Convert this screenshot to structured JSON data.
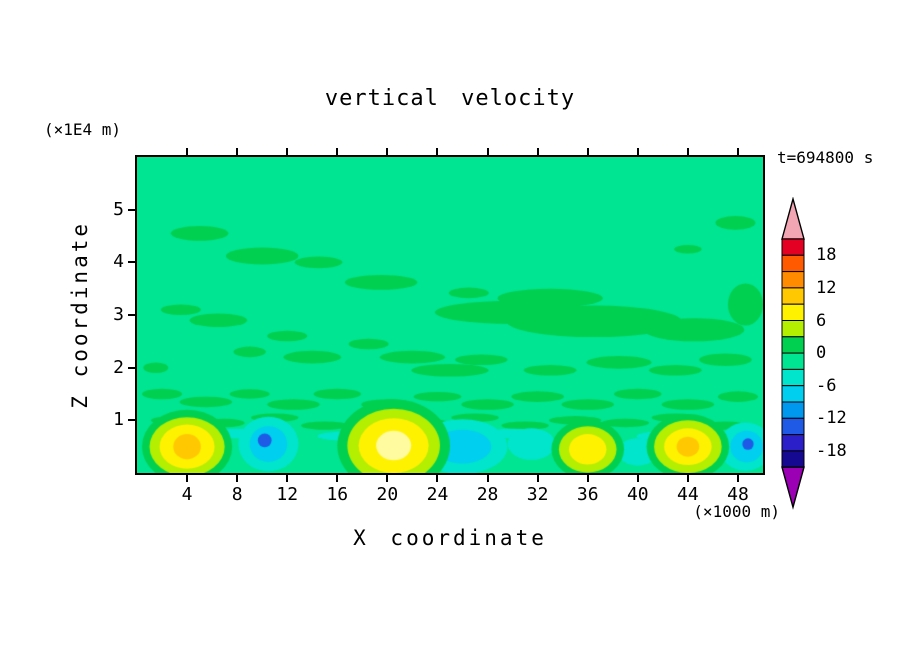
{
  "title": "vertical velocity",
  "timestamp": "t=694800 s",
  "x_axis": {
    "label": "X coordinate",
    "unit": "(×1000 m)",
    "ticks": [
      4,
      8,
      12,
      16,
      20,
      24,
      28,
      32,
      36,
      40,
      44,
      48
    ],
    "range": [
      0,
      50
    ]
  },
  "y_axis": {
    "label": "Z coordinate",
    "unit": "(×1E4 m)",
    "ticks": [
      1,
      2,
      3,
      4,
      5
    ],
    "range": [
      0,
      6
    ]
  },
  "colorbar": {
    "position": "right",
    "band_edges": [
      21,
      18,
      15,
      12,
      9,
      6,
      3,
      0,
      -3,
      -6,
      -9,
      -12,
      -15,
      -18,
      -21
    ],
    "colors": [
      "#E30022",
      "#FF5A00",
      "#FF8C00",
      "#FFC800",
      "#FFF200",
      "#B4EE00",
      "#00D050",
      "#00E591",
      "#00E5CC",
      "#00CFEF",
      "#0098EE",
      "#1E5AE6",
      "#2A1FC8",
      "#160991"
    ],
    "top_arrow_color": "#F2A6B4",
    "bottom_arrow_color": "#9B00B4",
    "labels": [
      {
        "text": "18",
        "edge_index": 1
      },
      {
        "text": "12",
        "edge_index": 3
      },
      {
        "text": "6",
        "edge_index": 5
      },
      {
        "text": "0",
        "edge_index": 7
      },
      {
        "text": "-6",
        "edge_index": 9
      },
      {
        "text": "-12",
        "edge_index": 11
      },
      {
        "text": "-18",
        "edge_index": 13
      }
    ]
  },
  "chart_data": {
    "type": "heatmap",
    "title": "vertical velocity",
    "xlabel": "X coordinate",
    "ylabel": "Z coordinate",
    "x_unit": "×1000 m",
    "z_unit": "×1E4 m",
    "time_s": 694800,
    "x_range": [
      0,
      50
    ],
    "z_range": [
      0,
      6
    ],
    "contour_interval": 3,
    "labeled_levels": [
      18,
      12,
      6,
      0,
      -6,
      -12,
      -18
    ],
    "grid": false,
    "colorbar_position": "right",
    "background_color": "#00E591",
    "palette": {
      "g": "#00D050",
      "t": "#00E5CC",
      "c": "#00CFEF",
      "b": "#1E5AE6",
      "yg": "#B4EE00",
      "y": "#FFF200",
      "a": "#FFC800",
      "p": "#FFFB9E"
    },
    "features": [
      [
        5.0,
        4.55,
        2.3,
        0.14,
        "g"
      ],
      [
        10.0,
        4.12,
        2.9,
        0.16,
        "g"
      ],
      [
        14.5,
        4.0,
        1.9,
        0.11,
        "g"
      ],
      [
        47.8,
        4.75,
        1.6,
        0.13,
        "g"
      ],
      [
        44.0,
        4.25,
        1.1,
        0.08,
        "g"
      ],
      [
        19.5,
        3.62,
        2.9,
        0.14,
        "g"
      ],
      [
        26.5,
        3.42,
        1.6,
        0.1,
        "g"
      ],
      [
        33.0,
        3.32,
        4.2,
        0.18,
        "g"
      ],
      [
        30.0,
        3.05,
        6.2,
        0.22,
        "g"
      ],
      [
        36.5,
        2.88,
        7.0,
        0.3,
        "g"
      ],
      [
        44.5,
        2.72,
        4.0,
        0.22,
        "g"
      ],
      [
        48.6,
        3.2,
        1.4,
        0.4,
        "g"
      ],
      [
        3.5,
        3.1,
        1.6,
        0.1,
        "g"
      ],
      [
        6.5,
        2.9,
        2.3,
        0.13,
        "g"
      ],
      [
        12.0,
        2.6,
        1.6,
        0.1,
        "g"
      ],
      [
        9.0,
        2.3,
        1.3,
        0.1,
        "g"
      ],
      [
        14.0,
        2.2,
        2.3,
        0.12,
        "g"
      ],
      [
        18.5,
        2.45,
        1.6,
        0.1,
        "g"
      ],
      [
        22.0,
        2.2,
        2.6,
        0.12,
        "g"
      ],
      [
        27.5,
        2.15,
        2.1,
        0.1,
        "g"
      ],
      [
        25.0,
        1.95,
        3.1,
        0.12,
        "g"
      ],
      [
        33.0,
        1.95,
        2.1,
        0.1,
        "g"
      ],
      [
        38.5,
        2.1,
        2.6,
        0.12,
        "g"
      ],
      [
        43.0,
        1.95,
        2.1,
        0.1,
        "g"
      ],
      [
        47.0,
        2.15,
        2.1,
        0.12,
        "g"
      ],
      [
        1.5,
        2.0,
        1.0,
        0.1,
        "g"
      ],
      [
        2.0,
        1.5,
        1.6,
        0.1,
        "g"
      ],
      [
        5.5,
        1.35,
        2.1,
        0.1,
        "g"
      ],
      [
        9.0,
        1.5,
        1.6,
        0.09,
        "g"
      ],
      [
        12.5,
        1.3,
        2.1,
        0.1,
        "g"
      ],
      [
        16.0,
        1.5,
        1.9,
        0.1,
        "g"
      ],
      [
        20.0,
        1.3,
        2.1,
        0.1,
        "g"
      ],
      [
        24.0,
        1.45,
        1.9,
        0.09,
        "g"
      ],
      [
        28.0,
        1.3,
        2.1,
        0.1,
        "g"
      ],
      [
        32.0,
        1.45,
        2.1,
        0.1,
        "g"
      ],
      [
        36.0,
        1.3,
        2.1,
        0.1,
        "g"
      ],
      [
        40.0,
        1.5,
        1.9,
        0.1,
        "g"
      ],
      [
        44.0,
        1.3,
        2.1,
        0.1,
        "g"
      ],
      [
        48.0,
        1.45,
        1.6,
        0.1,
        "g"
      ],
      [
        3.0,
        1.0,
        1.9,
        0.08,
        "g"
      ],
      [
        7.0,
        0.95,
        1.6,
        0.08,
        "g"
      ],
      [
        11.0,
        1.05,
        1.9,
        0.08,
        "g"
      ],
      [
        15.0,
        0.9,
        1.9,
        0.08,
        "g"
      ],
      [
        19.0,
        1.0,
        2.1,
        0.08,
        "g"
      ],
      [
        23.0,
        0.95,
        1.9,
        0.08,
        "g"
      ],
      [
        27.0,
        1.05,
        1.9,
        0.08,
        "g"
      ],
      [
        31.0,
        0.9,
        1.9,
        0.08,
        "g"
      ],
      [
        35.0,
        1.0,
        2.1,
        0.08,
        "g"
      ],
      [
        39.0,
        0.95,
        1.9,
        0.08,
        "g"
      ],
      [
        43.0,
        1.05,
        1.9,
        0.08,
        "g"
      ],
      [
        47.0,
        0.9,
        1.6,
        0.08,
        "g"
      ],
      [
        8.0,
        0.75,
        2.1,
        0.09,
        "t"
      ],
      [
        17.0,
        0.7,
        2.6,
        0.09,
        "t"
      ],
      [
        30.0,
        0.75,
        2.1,
        0.09,
        "t"
      ],
      [
        42.0,
        0.7,
        2.1,
        0.09,
        "t"
      ],
      [
        10.5,
        0.55,
        2.4,
        0.52,
        "t"
      ],
      [
        10.5,
        0.55,
        1.5,
        0.34,
        "c"
      ],
      [
        10.2,
        0.62,
        0.55,
        0.13,
        "b"
      ],
      [
        26.0,
        0.5,
        3.6,
        0.52,
        "t"
      ],
      [
        26.0,
        0.5,
        2.3,
        0.32,
        "c"
      ],
      [
        31.5,
        0.55,
        1.9,
        0.3,
        "t"
      ],
      [
        40.0,
        0.4,
        1.6,
        0.26,
        "t"
      ],
      [
        48.6,
        0.5,
        2.1,
        0.46,
        "t"
      ],
      [
        48.7,
        0.5,
        1.3,
        0.3,
        "c"
      ],
      [
        48.8,
        0.55,
        0.45,
        0.11,
        "b"
      ],
      [
        4.0,
        0.5,
        3.6,
        0.7,
        "g"
      ],
      [
        4.0,
        0.5,
        3.0,
        0.56,
        "yg"
      ],
      [
        4.0,
        0.5,
        2.2,
        0.42,
        "y"
      ],
      [
        4.0,
        0.5,
        1.1,
        0.24,
        "a"
      ],
      [
        20.5,
        0.52,
        4.5,
        0.88,
        "g"
      ],
      [
        20.5,
        0.52,
        3.7,
        0.7,
        "yg"
      ],
      [
        20.5,
        0.52,
        2.8,
        0.52,
        "y"
      ],
      [
        20.5,
        0.52,
        1.4,
        0.28,
        "p"
      ],
      [
        36.0,
        0.45,
        2.9,
        0.56,
        "g"
      ],
      [
        36.0,
        0.45,
        2.3,
        0.44,
        "yg"
      ],
      [
        36.0,
        0.45,
        1.5,
        0.29,
        "y"
      ],
      [
        44.0,
        0.5,
        3.3,
        0.62,
        "g"
      ],
      [
        44.0,
        0.5,
        2.7,
        0.5,
        "yg"
      ],
      [
        44.0,
        0.5,
        1.9,
        0.35,
        "y"
      ],
      [
        44.0,
        0.5,
        0.9,
        0.19,
        "a"
      ]
    ]
  }
}
